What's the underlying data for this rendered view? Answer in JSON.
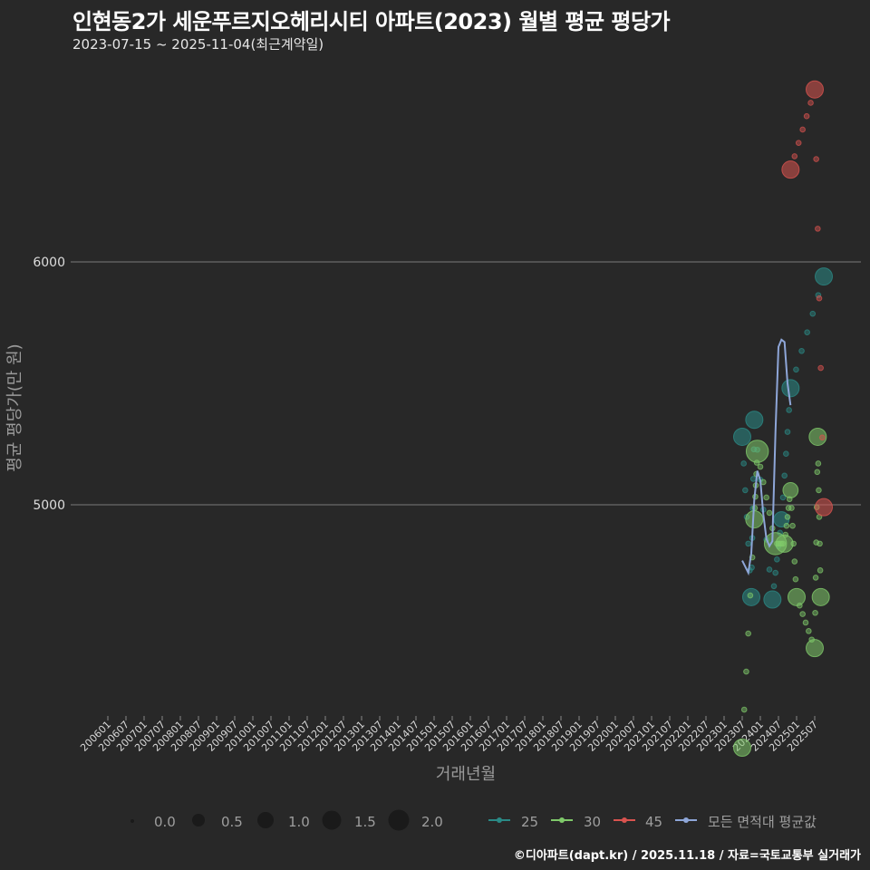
{
  "header": {
    "title": "인현동2가 세운푸르지오헤리시티 아파트(2023) 월별 평균 평당가",
    "subtitle": "2023-07-15 ~ 2025-11-04(최근계약일)"
  },
  "footer": {
    "credit": "©디아파트(dapt.kr) / 2025.11.18 / 자료=국토교통부 실거래가"
  },
  "colors": {
    "background": "#282828",
    "gridline": "#6a6a6a",
    "series_25": "#2a8a86",
    "series_30": "#7fc96a",
    "series_45": "#d9534f",
    "series_avg": "#8ea6d8"
  },
  "chart_data": {
    "type": "scatter",
    "title": "인현동2가 세운푸르지오헤리시티 아파트(2023) 월별 평균 평당가",
    "subtitle": "2023-07-15 ~ 2025-11-04(최근계약일)",
    "xlabel": "거래년월",
    "ylabel": "평균 평당가(만 원)",
    "x_ticks": [
      "200601",
      "200607",
      "200701",
      "200707",
      "200801",
      "200807",
      "200901",
      "200907",
      "201001",
      "201007",
      "201101",
      "201107",
      "201201",
      "201207",
      "201301",
      "201307",
      "201401",
      "201407",
      "201501",
      "201507",
      "201601",
      "201607",
      "201701",
      "201707",
      "201801",
      "201807",
      "201901",
      "201907",
      "202001",
      "202007",
      "202101",
      "202107",
      "202201",
      "202207",
      "202301",
      "202307",
      "202401",
      "202407",
      "202501",
      "202507"
    ],
    "y_ticks": [
      5000,
      6000
    ],
    "ylim": [
      3850,
      6900
    ],
    "grid": "horizontal major lines only",
    "size_legend": {
      "title": "",
      "values": [
        "0.0",
        "0.5",
        "1.0",
        "1.5",
        "2.0"
      ]
    },
    "color_legend": [
      "25",
      "30",
      "45",
      "모든 면적대 평균값"
    ],
    "legend_position": "bottom",
    "series": [
      {
        "name": "25",
        "points": [
          {
            "x": "202307",
            "y": 5280,
            "size": 1.0
          },
          {
            "x": "202310",
            "y": 4620,
            "size": 1.0
          },
          {
            "x": "202311",
            "y": 5350,
            "size": 1.0
          },
          {
            "x": "202405",
            "y": 4610,
            "size": 1.0
          },
          {
            "x": "202408",
            "y": 4940,
            "size": 0.8
          },
          {
            "x": "202411",
            "y": 5480,
            "size": 1.0
          },
          {
            "x": "202510",
            "y": 5940,
            "size": 1.0
          }
        ]
      },
      {
        "name": "30",
        "points": [
          {
            "x": "202307",
            "y": 4000,
            "size": 1.0
          },
          {
            "x": "202311",
            "y": 4940,
            "size": 1.0
          },
          {
            "x": "202312",
            "y": 5220,
            "size": 1.5
          },
          {
            "x": "202406",
            "y": 4840,
            "size": 1.5
          },
          {
            "x": "202409",
            "y": 4840,
            "size": 1.0
          },
          {
            "x": "202411",
            "y": 5060,
            "size": 0.8
          },
          {
            "x": "202501",
            "y": 4620,
            "size": 1.0
          },
          {
            "x": "202507",
            "y": 4410,
            "size": 1.0
          },
          {
            "x": "202508",
            "y": 5280,
            "size": 1.0
          },
          {
            "x": "202509",
            "y": 4620,
            "size": 1.0
          }
        ]
      },
      {
        "name": "45",
        "points": [
          {
            "x": "202411",
            "y": 6380,
            "size": 1.0
          },
          {
            "x": "202507",
            "y": 6710,
            "size": 1.0
          },
          {
            "x": "202510",
            "y": 4990,
            "size": 1.0
          }
        ]
      },
      {
        "name": "모든 면적대 평균값",
        "type": "line",
        "points": [
          {
            "x": "202307",
            "y": 4770
          },
          {
            "x": "202309",
            "y": 4720
          },
          {
            "x": "202310",
            "y": 4800
          },
          {
            "x": "202311",
            "y": 5020
          },
          {
            "x": "202312",
            "y": 5140
          },
          {
            "x": "202401",
            "y": 5100
          },
          {
            "x": "202402",
            "y": 4960
          },
          {
            "x": "202403",
            "y": 4860
          },
          {
            "x": "202404",
            "y": 4830
          },
          {
            "x": "202405",
            "y": 4850
          },
          {
            "x": "202406",
            "y": 5300
          },
          {
            "x": "202407",
            "y": 5650
          },
          {
            "x": "202408",
            "y": 5680
          },
          {
            "x": "202409",
            "y": 5670
          },
          {
            "x": "202410",
            "y": 5500
          },
          {
            "x": "202411",
            "y": 5410
          }
        ]
      }
    ]
  },
  "axes": {
    "ylabel": "평균 평당가(만 원)",
    "xlabel": "거래년월",
    "y_tick_labels": [
      "6000",
      "5000"
    ]
  },
  "legend": {
    "sizes": [
      "0.0",
      "0.5",
      "1.0",
      "1.5",
      "2.0"
    ],
    "series": [
      "25",
      "30",
      "45",
      "모든 면적대 평균값"
    ]
  }
}
